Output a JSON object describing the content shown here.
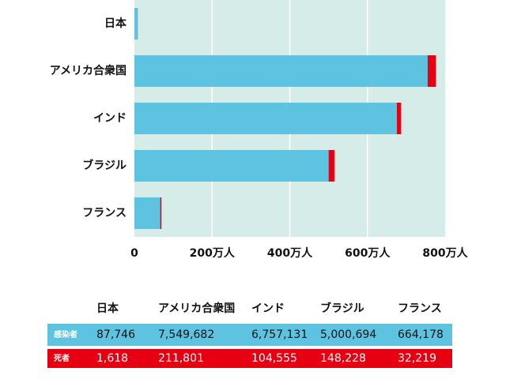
{
  "chart_data": {
    "type": "bar",
    "orientation": "horizontal",
    "stacked": true,
    "categories": [
      "日本",
      "アメリカ合衆国",
      "インド",
      "ブラジル",
      "フランス"
    ],
    "series": [
      {
        "name": "感染者",
        "color": "#5ec3e0",
        "values": [
          87746,
          7549682,
          6757131,
          5000694,
          664178
        ],
        "value_labels": [
          "87,746",
          "7,549,682",
          "6,757,131",
          "5,000,694",
          "664,178"
        ]
      },
      {
        "name": "死者",
        "color": "#e60012",
        "values": [
          1618,
          211801,
          104555,
          148228,
          32219
        ],
        "value_labels": [
          "1,618",
          "211,801",
          "104,555",
          "148,228",
          "32,219"
        ]
      }
    ],
    "xlim": [
      0,
      8000000
    ],
    "xticks": [
      0,
      {
        "value": 2000000,
        "label": "200万人"
      },
      {
        "value": 4000000,
        "label": "400万人"
      },
      {
        "value": 6000000,
        "label": "600万人"
      },
      {
        "value": 8000000,
        "label": "800万人"
      }
    ],
    "grid": true
  }
}
